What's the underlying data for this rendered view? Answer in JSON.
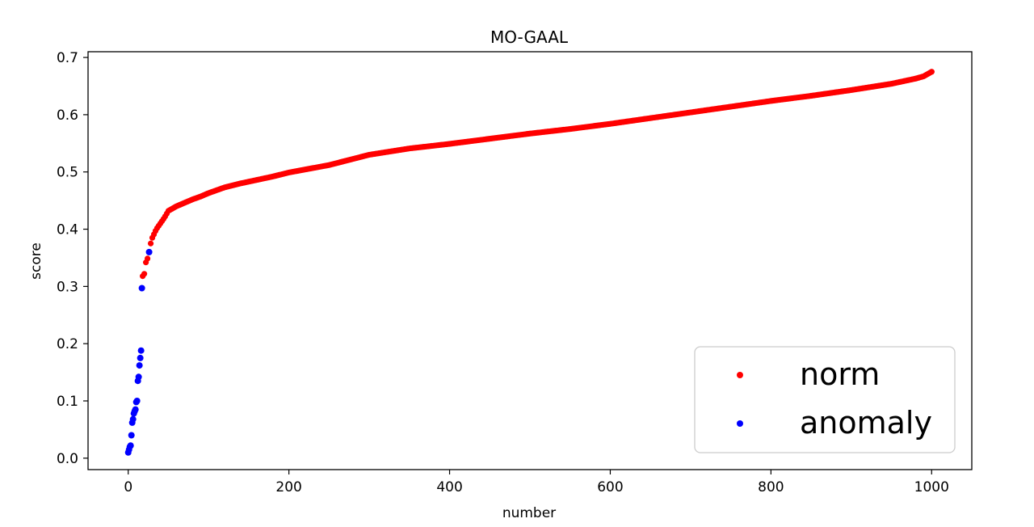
{
  "chart_data": {
    "type": "scatter",
    "title": "MO-GAAL",
    "xlabel": "number",
    "ylabel": "score",
    "xlim": [
      -50,
      1050
    ],
    "ylim": [
      -0.02,
      0.71
    ],
    "xticks": [
      0,
      200,
      400,
      600,
      800,
      1000
    ],
    "xtick_labels": [
      "0",
      "200",
      "400",
      "600",
      "800",
      "1000"
    ],
    "yticks": [
      0.0,
      0.1,
      0.2,
      0.3,
      0.4,
      0.5,
      0.6,
      0.7
    ],
    "ytick_labels": [
      "0.0",
      "0.1",
      "0.2",
      "0.3",
      "0.4",
      "0.5",
      "0.6",
      "0.7"
    ],
    "grid": false,
    "legend_position": "lower-right",
    "series": [
      {
        "name": "norm",
        "color": "#ff0000",
        "curve": [
          [
            18,
            0.318
          ],
          [
            20,
            0.322
          ],
          [
            22,
            0.342
          ],
          [
            25,
            0.352
          ],
          [
            28,
            0.375
          ],
          [
            30,
            0.385
          ],
          [
            35,
            0.4
          ],
          [
            40,
            0.41
          ],
          [
            45,
            0.42
          ],
          [
            50,
            0.432
          ],
          [
            60,
            0.44
          ],
          [
            70,
            0.446
          ],
          [
            80,
            0.452
          ],
          [
            90,
            0.457
          ],
          [
            100,
            0.463
          ],
          [
            120,
            0.473
          ],
          [
            140,
            0.48
          ],
          [
            160,
            0.486
          ],
          [
            180,
            0.492
          ],
          [
            200,
            0.499
          ],
          [
            250,
            0.512
          ],
          [
            300,
            0.53
          ],
          [
            350,
            0.541
          ],
          [
            400,
            0.549
          ],
          [
            450,
            0.558
          ],
          [
            500,
            0.567
          ],
          [
            550,
            0.575
          ],
          [
            600,
            0.584
          ],
          [
            650,
            0.594
          ],
          [
            700,
            0.604
          ],
          [
            750,
            0.614
          ],
          [
            800,
            0.624
          ],
          [
            850,
            0.633
          ],
          [
            900,
            0.643
          ],
          [
            950,
            0.654
          ],
          [
            980,
            0.663
          ],
          [
            990,
            0.667
          ],
          [
            1000,
            0.675
          ]
        ],
        "step": 2
      },
      {
        "name": "anomaly",
        "color": "#0000ff",
        "x": [
          0,
          1,
          2,
          3,
          4,
          5,
          6,
          7,
          8,
          9,
          10,
          11,
          12,
          13,
          14,
          15,
          16,
          17,
          26
        ],
        "y": [
          0.01,
          0.015,
          0.02,
          0.022,
          0.04,
          0.062,
          0.068,
          0.078,
          0.082,
          0.085,
          0.098,
          0.1,
          0.135,
          0.142,
          0.162,
          0.175,
          0.188,
          0.297,
          0.36
        ]
      }
    ]
  }
}
